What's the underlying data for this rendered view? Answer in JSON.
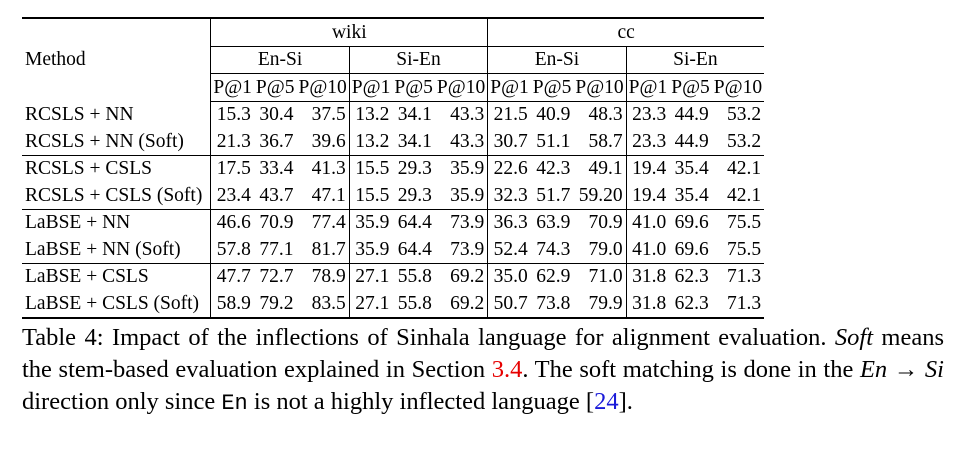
{
  "table": {
    "method_header": "Method",
    "corpora": [
      "wiki",
      "cc"
    ],
    "pairs": [
      "En-Si",
      "Si-En",
      "En-Si",
      "Si-En"
    ],
    "metrics": [
      "P@1",
      "P@5",
      "P@10",
      "P@1",
      "P@5",
      "P@10",
      "P@1",
      "P@5",
      "P@10",
      "P@1",
      "P@5",
      "P@10"
    ],
    "rows": [
      {
        "method": "RCSLS + NN",
        "values": [
          "15.3",
          "30.4",
          "37.5",
          "13.2",
          "34.1",
          "43.3",
          "21.5",
          "40.9",
          "48.3",
          "23.3",
          "44.9",
          "53.2"
        ],
        "bold": []
      },
      {
        "method": "RCSLS + NN (Soft)",
        "values": [
          "21.3",
          "36.7",
          "39.6",
          "13.2",
          "34.1",
          "43.3",
          "30.7",
          "51.1",
          "58.7",
          "23.3",
          "44.9",
          "53.2"
        ],
        "bold": []
      },
      {
        "method": "RCSLS + CSLS",
        "values": [
          "17.5",
          "33.4",
          "41.3",
          "15.5",
          "29.3",
          "35.9",
          "22.6",
          "42.3",
          "49.1",
          "19.4",
          "35.4",
          "42.1"
        ],
        "bold": []
      },
      {
        "method": "RCSLS + CSLS (Soft)",
        "values": [
          "23.4",
          "43.7",
          "47.1",
          "15.5",
          "29.3",
          "35.9",
          "32.3",
          "51.7",
          "59.20",
          "19.4",
          "35.4",
          "42.1"
        ],
        "bold": []
      },
      {
        "method": "LaBSE + NN",
        "values": [
          "46.6",
          "70.9",
          "77.4",
          "35.9",
          "64.4",
          "73.9",
          "36.3",
          "63.9",
          "70.9",
          "41.0",
          "69.6",
          "75.5"
        ],
        "bold": [
          3,
          4,
          5,
          9,
          10,
          11
        ]
      },
      {
        "method": "LaBSE + NN (Soft)",
        "values": [
          "57.8",
          "77.1",
          "81.7",
          "35.9",
          "64.4",
          "73.9",
          "52.4",
          "74.3",
          "79.0",
          "41.0",
          "69.6",
          "75.5"
        ],
        "bold": [
          3,
          4,
          5,
          6,
          7,
          9,
          10,
          11
        ]
      },
      {
        "method": "LaBSE + CSLS",
        "values": [
          "47.7",
          "72.7",
          "78.9",
          "27.1",
          "55.8",
          "69.2",
          "35.0",
          "62.9",
          "71.0",
          "31.8",
          "62.3",
          "71.3"
        ],
        "bold": []
      },
      {
        "method": "LaBSE + CSLS (Soft)",
        "values": [
          "58.9",
          "79.2",
          "83.5",
          "27.1",
          "55.8",
          "69.2",
          "50.7",
          "73.8",
          "79.9",
          "31.8",
          "62.3",
          "71.3"
        ],
        "bold": [
          0,
          1,
          2,
          8
        ]
      }
    ]
  },
  "caption": {
    "label": "Table 4: Impact of the inflections of Sinhala language for alignment evaluation.",
    "soft_word": "Soft",
    "s2a": " means the stem-based evaluation explained in Section ",
    "section_ref": "3.4",
    "s2b": ". The soft matching is done in the ",
    "en_italic": "En",
    "arrow": " → ",
    "si_italic": "Si",
    "s3": " direction only since ",
    "en_mono": "En",
    "s4": " is not a highly inflected language [",
    "cite_ref": "24",
    "s5": "]."
  },
  "colors": {
    "section_ref": "#e60000",
    "cite_ref": "#1a1ad9"
  }
}
